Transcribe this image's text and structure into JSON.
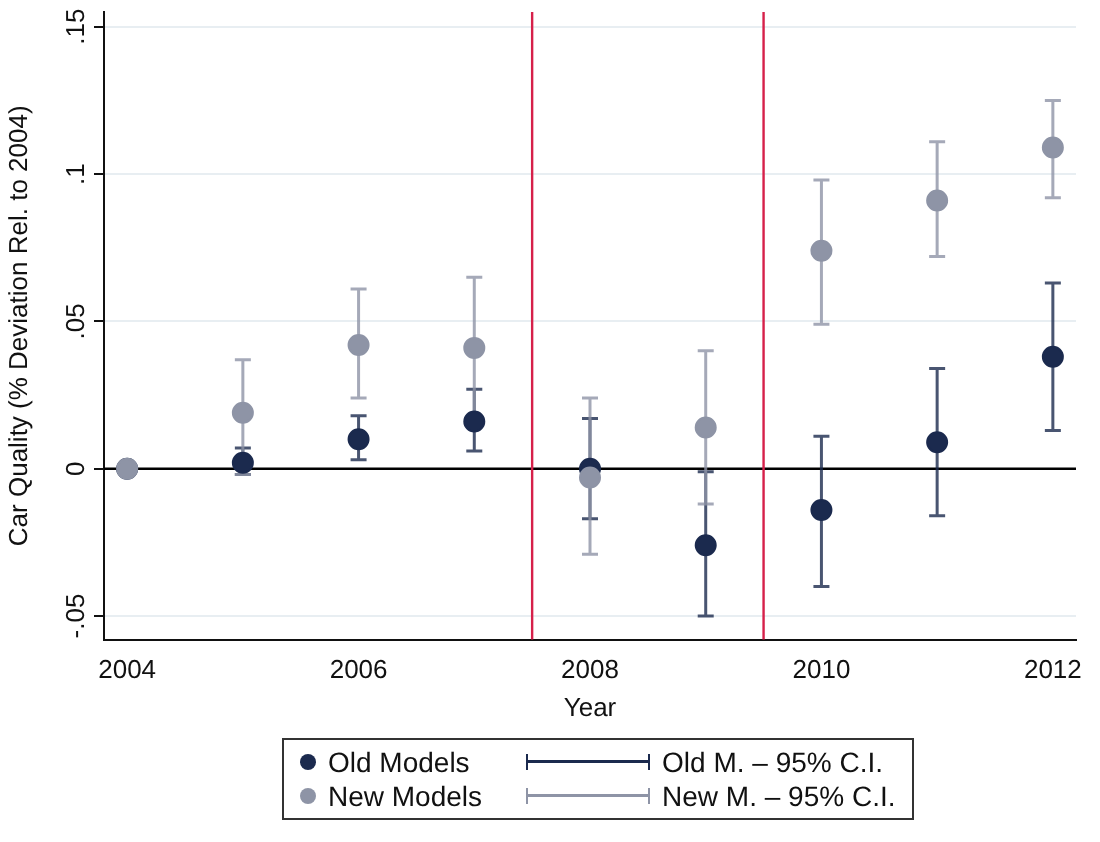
{
  "chart_data": {
    "type": "scatter",
    "xlabel": "Year",
    "ylabel": "Car Quality (% Deviation Rel. to 2004)",
    "x": [
      2004,
      2005,
      2006,
      2007,
      2008,
      2009,
      2010,
      2011,
      2012
    ],
    "series": [
      {
        "name": "Old Models",
        "color": "#1b2a4e",
        "values": [
          0,
          0.002,
          0.01,
          0.016,
          0,
          -0.026,
          -0.014,
          0.009,
          0.038
        ],
        "errors": [
          null,
          [
            -0.002,
            0.007
          ],
          [
            0.003,
            0.018
          ],
          [
            0.006,
            0.027
          ],
          [
            -0.017,
            0.017
          ],
          [
            -0.05,
            -0.001
          ],
          [
            -0.04,
            0.011
          ],
          [
            -0.016,
            0.034
          ],
          [
            0.013,
            0.063
          ]
        ]
      },
      {
        "name": "New Models",
        "color": "#8e94a6",
        "values": [
          0,
          0.019,
          0.042,
          0.041,
          -0.003,
          0.014,
          0.074,
          0.091,
          0.109
        ],
        "errors": [
          null,
          [
            -0.002,
            0.037
          ],
          [
            0.024,
            0.061
          ],
          [
            0.017,
            0.065
          ],
          [
            -0.029,
            0.024
          ],
          [
            -0.012,
            0.04
          ],
          [
            0.049,
            0.098
          ],
          [
            0.072,
            0.111
          ],
          [
            0.092,
            0.125
          ]
        ]
      }
    ],
    "annotations": [
      "Old M. – 95% C.I.",
      "New M. – 95% C.I."
    ],
    "xlim": [
      2003.8,
      2012.2
    ],
    "xticks": [
      2004,
      2006,
      2008,
      2010,
      2012
    ],
    "ylim": [
      -0.058,
      0.155
    ],
    "yticks": [
      {
        "value": -0.05,
        "label": "-.05"
      },
      0,
      {
        "value": 0.05,
        "label": ".05"
      },
      {
        "value": 0.1,
        "label": ".1"
      },
      {
        "value": 0.15,
        "label": ".15"
      }
    ],
    "ref_lines": [
      {
        "axis": "y",
        "value": 0,
        "color": "#000000"
      },
      {
        "axis": "x",
        "value": 2007.5,
        "color": "#d6204a"
      },
      {
        "axis": "x",
        "value": 2009.5,
        "color": "#d6204a"
      }
    ],
    "grid": "y",
    "legend": "bottom",
    "marker": "circle"
  }
}
